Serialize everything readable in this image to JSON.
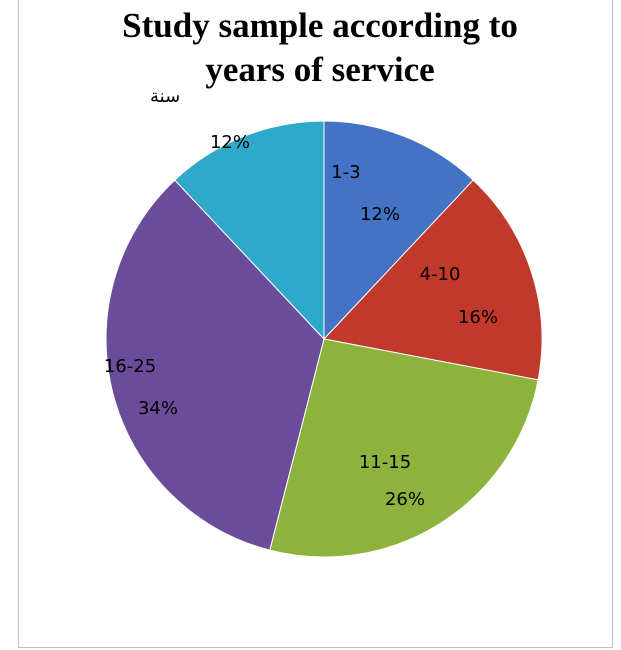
{
  "chart_data": {
    "type": "pie",
    "title_line1": "Study sample according to",
    "title_line2": "years of service",
    "annotation": "سنة",
    "slices": [
      {
        "label": "1-3",
        "value": 12,
        "percent_text": "12%",
        "color": "#4472C4"
      },
      {
        "label": "4-10",
        "value": 16,
        "percent_text": "16%",
        "color": "#C0392B"
      },
      {
        "label": "11-15",
        "value": 26,
        "percent_text": "26%",
        "color": "#8DB33D"
      },
      {
        "label": "16-25",
        "value": 34,
        "percent_text": "34%",
        "color": "#6B4C9A"
      },
      {
        "label": "",
        "value": 12,
        "percent_text": "12%",
        "color": "#2EA9C9"
      }
    ]
  }
}
